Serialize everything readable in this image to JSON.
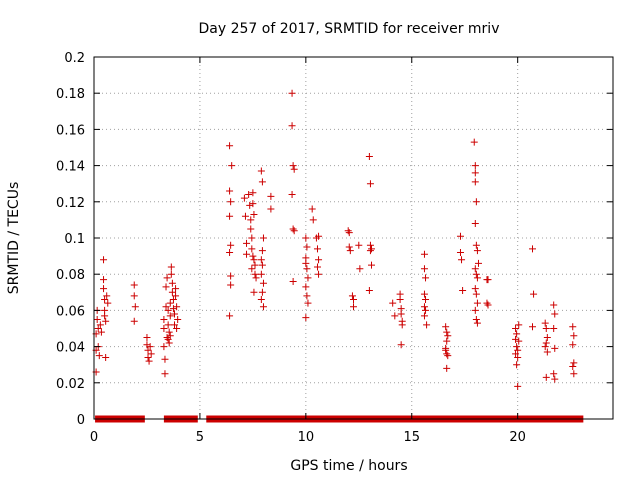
{
  "chart_data": {
    "type": "scatter",
    "title": "Day 257 of 2017, SRMTID for receiver mriv",
    "xlabel": "GPS time / hours",
    "ylabel": "SRMTID / TECUs",
    "xlim": [
      0,
      24.5
    ],
    "ylim": [
      0,
      0.2
    ],
    "x_ticks": [
      0,
      5,
      10,
      15,
      20
    ],
    "x_tick_labels": [
      "0",
      "5",
      "10",
      "15",
      "20"
    ],
    "y_ticks": [
      0,
      0.02,
      0.04,
      0.06,
      0.08,
      0.1,
      0.12,
      0.14,
      0.16,
      0.18,
      0.2
    ],
    "y_tick_labels": [
      "0",
      "0.02",
      "0.04",
      "0.06",
      "0.08",
      "0.1",
      "0.12",
      "0.14",
      "0.16",
      "0.18",
      "0.2"
    ],
    "grid": true,
    "marker": "plus",
    "marker_color": "#cc0000",
    "zero_line_ranges": [
      [
        0.05,
        2.4
      ],
      [
        3.3,
        4.9
      ],
      [
        5.3,
        23.1
      ]
    ],
    "series": [
      {
        "values": [
          [
            0.1,
            0.026
          ],
          [
            0.1,
            0.038
          ],
          [
            0.1,
            0.047
          ],
          [
            0.15,
            0.055
          ],
          [
            0.15,
            0.06
          ],
          [
            0.2,
            0.04
          ],
          [
            0.2,
            0.05
          ],
          [
            0.25,
            0.035
          ],
          [
            0.3,
            0.052
          ],
          [
            0.35,
            0.048
          ],
          [
            0.45,
            0.088
          ],
          [
            0.45,
            0.077
          ],
          [
            0.45,
            0.072
          ],
          [
            0.5,
            0.066
          ],
          [
            0.5,
            0.06
          ],
          [
            0.5,
            0.057
          ],
          [
            0.55,
            0.054
          ],
          [
            0.55,
            0.034
          ],
          [
            0.6,
            0.068
          ],
          [
            0.65,
            0.064
          ],
          [
            1.9,
            0.074
          ],
          [
            1.9,
            0.068
          ],
          [
            1.95,
            0.062
          ],
          [
            1.9,
            0.054
          ],
          [
            2.5,
            0.045
          ],
          [
            2.5,
            0.041
          ],
          [
            2.55,
            0.038
          ],
          [
            2.55,
            0.034
          ],
          [
            2.6,
            0.032
          ],
          [
            2.65,
            0.04
          ],
          [
            2.7,
            0.036
          ],
          [
            3.3,
            0.055
          ],
          [
            3.3,
            0.05
          ],
          [
            3.3,
            0.04
          ],
          [
            3.35,
            0.025
          ],
          [
            3.35,
            0.033
          ],
          [
            3.4,
            0.062
          ],
          [
            3.4,
            0.073
          ],
          [
            3.45,
            0.078
          ],
          [
            3.45,
            0.045
          ],
          [
            3.5,
            0.06
          ],
          [
            3.5,
            0.052
          ],
          [
            3.55,
            0.048
          ],
          [
            3.55,
            0.042
          ],
          [
            3.6,
            0.064
          ],
          [
            3.6,
            0.057
          ],
          [
            3.65,
            0.084
          ],
          [
            3.65,
            0.08
          ],
          [
            3.7,
            0.075
          ],
          [
            3.7,
            0.07
          ],
          [
            3.75,
            0.066
          ],
          [
            3.75,
            0.061
          ],
          [
            3.8,
            0.058
          ],
          [
            3.8,
            0.052
          ],
          [
            3.85,
            0.068
          ],
          [
            3.85,
            0.072
          ],
          [
            3.9,
            0.062
          ],
          [
            3.9,
            0.05
          ],
          [
            3.95,
            0.055
          ],
          [
            3.5,
            0.044
          ],
          [
            3.6,
            0.046
          ],
          [
            6.4,
            0.151
          ],
          [
            6.4,
            0.126
          ],
          [
            6.45,
            0.12
          ],
          [
            6.4,
            0.112
          ],
          [
            6.45,
            0.096
          ],
          [
            6.4,
            0.092
          ],
          [
            6.5,
            0.14
          ],
          [
            6.45,
            0.079
          ],
          [
            6.45,
            0.074
          ],
          [
            6.4,
            0.057
          ],
          [
            7.1,
            0.122
          ],
          [
            7.15,
            0.112
          ],
          [
            7.2,
            0.097
          ],
          [
            7.2,
            0.091
          ],
          [
            7.3,
            0.124
          ],
          [
            7.35,
            0.118
          ],
          [
            7.4,
            0.11
          ],
          [
            7.4,
            0.105
          ],
          [
            7.45,
            0.1
          ],
          [
            7.45,
            0.094
          ],
          [
            7.5,
            0.125
          ],
          [
            7.5,
            0.119
          ],
          [
            7.55,
            0.113
          ],
          [
            7.55,
            0.088
          ],
          [
            7.6,
            0.08
          ],
          [
            7.65,
            0.078
          ],
          [
            7.6,
            0.085
          ],
          [
            7.5,
            0.09
          ],
          [
            7.45,
            0.083
          ],
          [
            7.55,
            0.07
          ],
          [
            7.9,
            0.137
          ],
          [
            7.95,
            0.131
          ],
          [
            8.0,
            0.1
          ],
          [
            7.95,
            0.093
          ],
          [
            7.9,
            0.088
          ],
          [
            7.95,
            0.085
          ],
          [
            7.9,
            0.08
          ],
          [
            8.0,
            0.075
          ],
          [
            7.95,
            0.07
          ],
          [
            7.9,
            0.066
          ],
          [
            8.0,
            0.062
          ],
          [
            8.35,
            0.116
          ],
          [
            8.35,
            0.123
          ],
          [
            9.35,
            0.18
          ],
          [
            9.35,
            0.162
          ],
          [
            9.4,
            0.14
          ],
          [
            9.45,
            0.138
          ],
          [
            9.35,
            0.124
          ],
          [
            9.4,
            0.105
          ],
          [
            9.45,
            0.104
          ],
          [
            9.4,
            0.076
          ],
          [
            10.0,
            0.1
          ],
          [
            10.05,
            0.095
          ],
          [
            10.0,
            0.089
          ],
          [
            10.0,
            0.086
          ],
          [
            10.05,
            0.083
          ],
          [
            10.1,
            0.078
          ],
          [
            10.0,
            0.073
          ],
          [
            10.05,
            0.068
          ],
          [
            10.1,
            0.064
          ],
          [
            10.0,
            0.056
          ],
          [
            10.3,
            0.116
          ],
          [
            10.35,
            0.11
          ],
          [
            10.5,
            0.1
          ],
          [
            10.6,
            0.101
          ],
          [
            10.55,
            0.094
          ],
          [
            10.6,
            0.088
          ],
          [
            10.55,
            0.084
          ],
          [
            10.6,
            0.08
          ],
          [
            12.0,
            0.104
          ],
          [
            12.05,
            0.103
          ],
          [
            12.05,
            0.095
          ],
          [
            12.1,
            0.093
          ],
          [
            12.2,
            0.068
          ],
          [
            12.25,
            0.066
          ],
          [
            12.25,
            0.062
          ],
          [
            12.5,
            0.096
          ],
          [
            12.55,
            0.083
          ],
          [
            13.0,
            0.145
          ],
          [
            13.05,
            0.13
          ],
          [
            13.05,
            0.096
          ],
          [
            13.1,
            0.094
          ],
          [
            13.05,
            0.093
          ],
          [
            13.1,
            0.085
          ],
          [
            13.0,
            0.071
          ],
          [
            14.1,
            0.064
          ],
          [
            14.2,
            0.057
          ],
          [
            14.45,
            0.069
          ],
          [
            14.45,
            0.066
          ],
          [
            14.5,
            0.061
          ],
          [
            14.5,
            0.058
          ],
          [
            14.55,
            0.054
          ],
          [
            14.55,
            0.052
          ],
          [
            14.5,
            0.041
          ],
          [
            15.6,
            0.091
          ],
          [
            15.6,
            0.083
          ],
          [
            15.65,
            0.078
          ],
          [
            15.6,
            0.069
          ],
          [
            15.65,
            0.066
          ],
          [
            15.6,
            0.062
          ],
          [
            15.65,
            0.06
          ],
          [
            15.6,
            0.057
          ],
          [
            15.7,
            0.052
          ],
          [
            16.6,
            0.051
          ],
          [
            16.65,
            0.048
          ],
          [
            16.7,
            0.046
          ],
          [
            16.65,
            0.043
          ],
          [
            16.6,
            0.039
          ],
          [
            16.65,
            0.036
          ],
          [
            16.7,
            0.035
          ],
          [
            16.65,
            0.028
          ],
          [
            16.6,
            0.038
          ],
          [
            17.3,
            0.101
          ],
          [
            17.3,
            0.092
          ],
          [
            17.35,
            0.088
          ],
          [
            17.4,
            0.071
          ],
          [
            17.95,
            0.153
          ],
          [
            18.0,
            0.14
          ],
          [
            18.0,
            0.136
          ],
          [
            18.0,
            0.131
          ],
          [
            18.05,
            0.12
          ],
          [
            18.0,
            0.108
          ],
          [
            18.05,
            0.096
          ],
          [
            18.1,
            0.093
          ],
          [
            18.0,
            0.083
          ],
          [
            18.05,
            0.08
          ],
          [
            18.1,
            0.078
          ],
          [
            18.0,
            0.072
          ],
          [
            18.05,
            0.069
          ],
          [
            18.1,
            0.064
          ],
          [
            18.0,
            0.06
          ],
          [
            18.05,
            0.055
          ],
          [
            18.1,
            0.053
          ],
          [
            18.15,
            0.086
          ],
          [
            18.55,
            0.077
          ],
          [
            18.6,
            0.077
          ],
          [
            18.55,
            0.064
          ],
          [
            18.6,
            0.063
          ],
          [
            19.9,
            0.05
          ],
          [
            19.95,
            0.047
          ],
          [
            19.9,
            0.044
          ],
          [
            19.95,
            0.04
          ],
          [
            20.0,
            0.038
          ],
          [
            19.9,
            0.036
          ],
          [
            20.0,
            0.034
          ],
          [
            19.95,
            0.03
          ],
          [
            20.0,
            0.018
          ],
          [
            20.05,
            0.052
          ],
          [
            20.05,
            0.043
          ],
          [
            20.7,
            0.094
          ],
          [
            20.75,
            0.069
          ],
          [
            20.7,
            0.051
          ],
          [
            21.3,
            0.053
          ],
          [
            21.35,
            0.05
          ],
          [
            21.4,
            0.045
          ],
          [
            21.35,
            0.042
          ],
          [
            21.3,
            0.04
          ],
          [
            21.4,
            0.037
          ],
          [
            21.35,
            0.023
          ],
          [
            21.7,
            0.063
          ],
          [
            21.75,
            0.058
          ],
          [
            21.7,
            0.05
          ],
          [
            21.75,
            0.039
          ],
          [
            21.7,
            0.025
          ],
          [
            21.75,
            0.022
          ],
          [
            22.6,
            0.051
          ],
          [
            22.65,
            0.046
          ],
          [
            22.6,
            0.041
          ],
          [
            22.65,
            0.031
          ],
          [
            22.6,
            0.029
          ],
          [
            22.65,
            0.025
          ]
        ]
      }
    ]
  }
}
